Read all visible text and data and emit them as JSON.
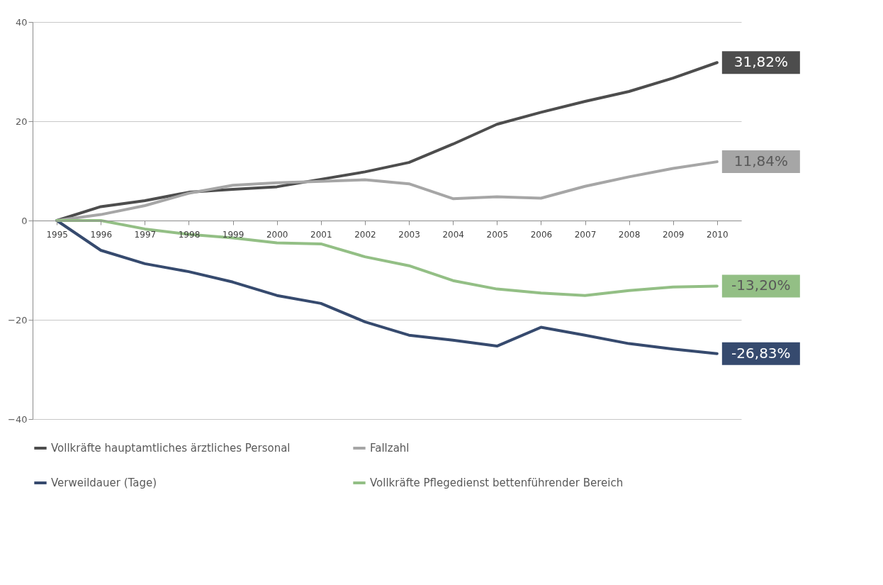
{
  "chart_data": {
    "type": "line",
    "categories": [
      "1995",
      "1996",
      "1997",
      "1998",
      "1999",
      "2000",
      "2001",
      "2002",
      "2003",
      "2004",
      "2005",
      "2006",
      "2007",
      "2008",
      "2009",
      "2010"
    ],
    "series": [
      {
        "name": "Vollkräfte hauptamtliches ärztliches Personal",
        "color": "#4d4d4d",
        "values": [
          0,
          2.8,
          4.0,
          5.7,
          6.3,
          6.8,
          8.3,
          9.8,
          11.7,
          15.4,
          19.4,
          21.8,
          24.0,
          26.0,
          28.7,
          31.82
        ],
        "value_labels": [
          null,
          null,
          null,
          null,
          null,
          null,
          null,
          null,
          null,
          null,
          null,
          null,
          null,
          null,
          null,
          "31,82%"
        ]
      },
      {
        "name": "Fallzahl",
        "color": "#a6a6a6",
        "values": [
          0,
          1.2,
          3.0,
          5.5,
          7.1,
          7.6,
          7.9,
          8.2,
          7.4,
          4.4,
          4.8,
          4.5,
          6.9,
          8.8,
          10.5,
          11.84
        ],
        "value_labels": [
          null,
          null,
          null,
          null,
          null,
          null,
          null,
          null,
          null,
          null,
          null,
          null,
          null,
          null,
          null,
          "11,84%"
        ]
      },
      {
        "name": "Verweildauer (Tage)",
        "color": "#364a6e",
        "values": [
          0,
          -6.0,
          -8.7,
          -10.3,
          -12.4,
          -15.1,
          -16.7,
          -20.4,
          -23.1,
          -24.1,
          -25.3,
          -21.5,
          -23.1,
          -24.8,
          -25.9,
          -26.83
        ],
        "value_labels": [
          null,
          null,
          null,
          null,
          null,
          null,
          null,
          null,
          null,
          null,
          null,
          null,
          null,
          null,
          null,
          "-26,83%"
        ]
      },
      {
        "name": "Vollkräfte Pflegedienst bettenführender Bereich",
        "color": "#93bf85",
        "values": [
          0,
          0,
          -1.7,
          -2.8,
          -3.5,
          -4.5,
          -4.7,
          -7.3,
          -9.1,
          -12.1,
          -13.8,
          -14.6,
          -15.1,
          -14.1,
          -13.4,
          -13.2
        ],
        "value_labels": [
          null,
          null,
          null,
          null,
          null,
          null,
          null,
          null,
          null,
          null,
          null,
          null,
          null,
          null,
          null,
          "-13,20%"
        ]
      }
    ],
    "ylim": [
      -40,
      40
    ],
    "yticks": [
      -40,
      -20,
      0,
      20,
      40
    ],
    "grid": "y",
    "legend": "bottom",
    "line_style": "solid"
  }
}
